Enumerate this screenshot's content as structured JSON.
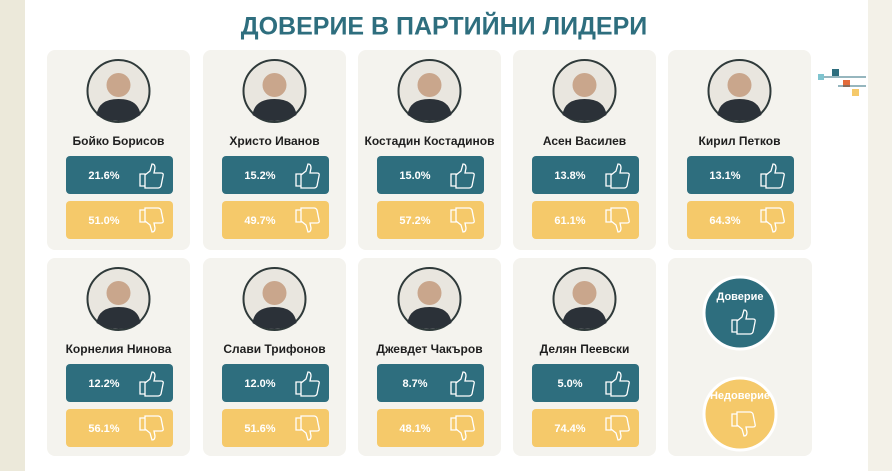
{
  "title": "ДОВЕРИЕ В ПАРТИЙНИ ЛИДЕРИ",
  "leaders": [
    {
      "name": "Бойко Борисов",
      "trust": "21.6%",
      "distrust": "51.0%"
    },
    {
      "name": "Христо Иванов",
      "trust": "15.2%",
      "distrust": "49.7%"
    },
    {
      "name": "Костадин Костадинов",
      "trust": "15.0%",
      "distrust": "57.2%"
    },
    {
      "name": "Асен Василев",
      "trust": "13.8%",
      "distrust": "61.1%"
    },
    {
      "name": "Кирил Петков",
      "trust": "13.1%",
      "distrust": "64.3%"
    },
    {
      "name": "Корнелия Нинова",
      "trust": "12.2%",
      "distrust": "56.1%"
    },
    {
      "name": "Слави Трифонов",
      "trust": "12.0%",
      "distrust": "51.6%"
    },
    {
      "name": "Джевдет Чакъров",
      "trust": "8.7%",
      "distrust": "48.1%"
    },
    {
      "name": "Делян Пеевски",
      "trust": "5.0%",
      "distrust": "74.4%"
    }
  ],
  "legend": {
    "trust": "Доверие",
    "distrust": "Недоверие"
  }
}
